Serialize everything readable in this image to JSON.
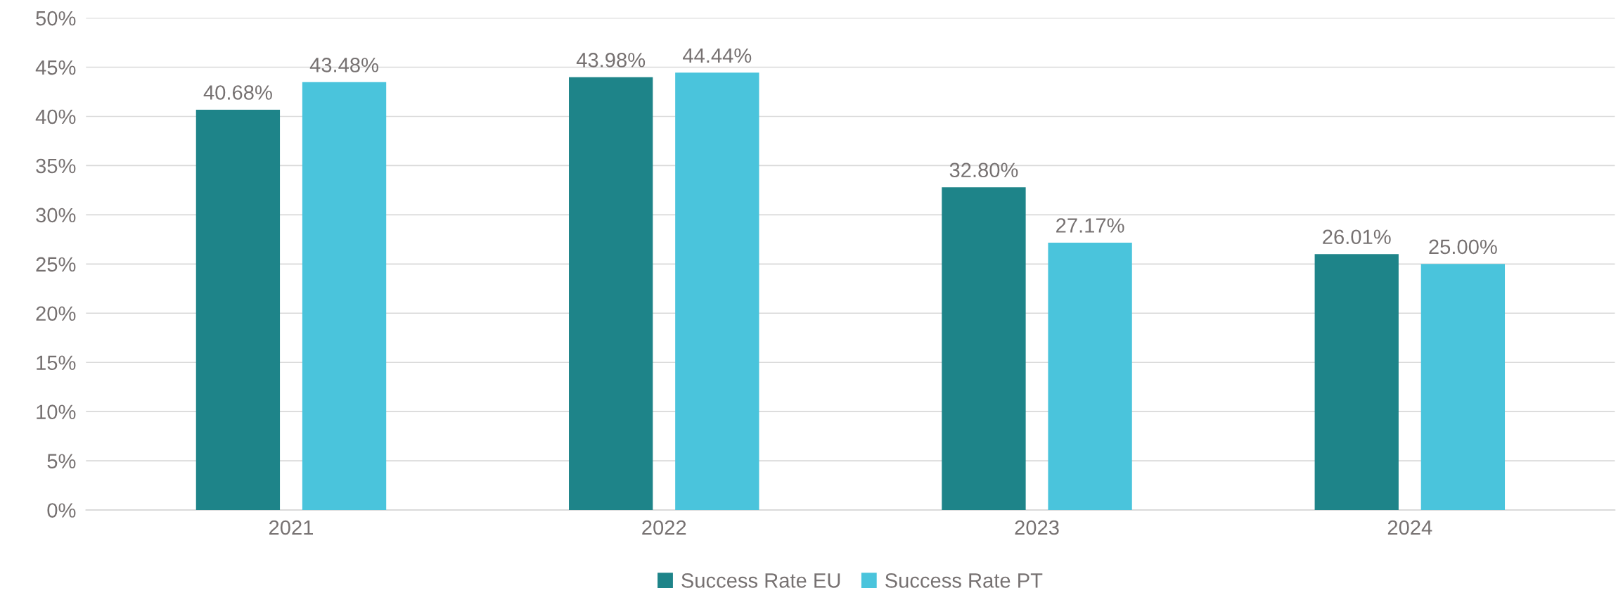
{
  "chart_data": {
    "type": "bar",
    "categories": [
      "2021",
      "2022",
      "2023",
      "2024"
    ],
    "series": [
      {
        "name": "Success Rate EU",
        "color": "#1e8489",
        "values": [
          40.68,
          43.98,
          32.8,
          26.01
        ],
        "value_labels": [
          "40.68%",
          "43.98%",
          "32.80%",
          "26.01%"
        ]
      },
      {
        "name": "Success Rate PT",
        "color": "#4ac4dc",
        "values": [
          43.48,
          44.44,
          27.17,
          25.0
        ],
        "value_labels": [
          "43.48%",
          "44.44%",
          "27.17%",
          "25.00%"
        ]
      }
    ],
    "ylim": [
      0,
      50
    ],
    "yticks": [
      {
        "value": 0,
        "label": "0%"
      },
      {
        "value": 5,
        "label": "5%"
      },
      {
        "value": 10,
        "label": "10%"
      },
      {
        "value": 15,
        "label": "15%"
      },
      {
        "value": 20,
        "label": "20%"
      },
      {
        "value": 25,
        "label": "25%"
      },
      {
        "value": 30,
        "label": "30%"
      },
      {
        "value": 35,
        "label": "35%"
      },
      {
        "value": 40,
        "label": "40%"
      },
      {
        "value": 45,
        "label": "45%"
      },
      {
        "value": 50,
        "label": "50%"
      }
    ],
    "grid": "y",
    "legend": "bottom"
  }
}
